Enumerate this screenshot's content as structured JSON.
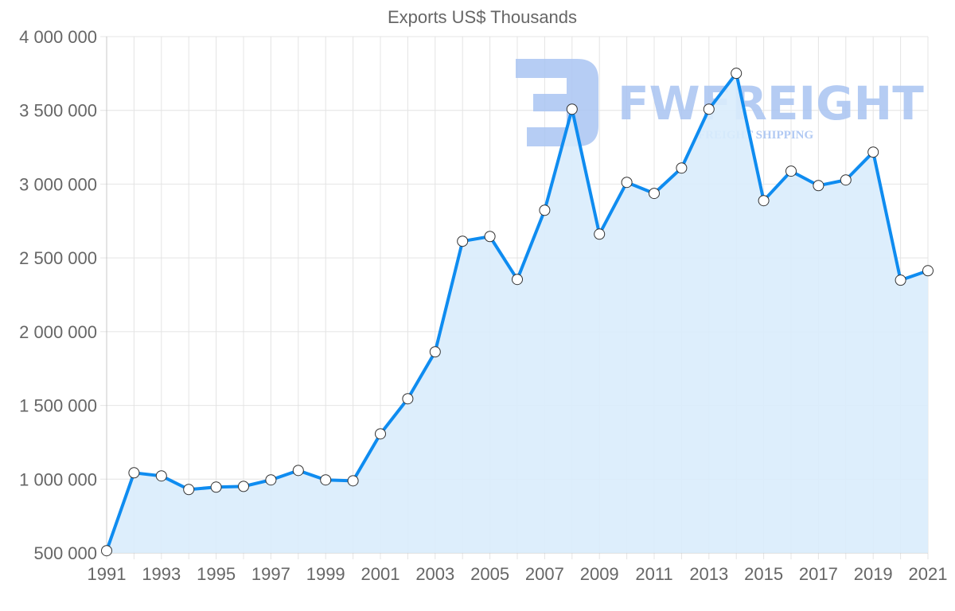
{
  "chart_data": {
    "type": "line",
    "title": "Exports US$ Thousands",
    "xlabel": "",
    "ylabel": "",
    "ylim": [
      500000,
      4000000
    ],
    "y_ticks": [
      500000,
      1000000,
      1500000,
      2000000,
      2500000,
      3000000,
      3500000,
      4000000
    ],
    "y_tick_labels": [
      "500 000",
      "1 000 000",
      "1 500 000",
      "2 000 000",
      "2 500 000",
      "3 000 000",
      "3 500 000",
      "4 000 000"
    ],
    "x_tick_labels": [
      "1991",
      "1993",
      "1995",
      "1997",
      "1999",
      "2001",
      "2003",
      "2005",
      "2007",
      "2009",
      "2011",
      "2013",
      "2015",
      "2017",
      "2019",
      "2021"
    ],
    "grid": true,
    "legend": "none",
    "fill": true,
    "categories": [
      "1991",
      "1992",
      "1993",
      "1994",
      "1995",
      "1996",
      "1997",
      "1998",
      "1999",
      "2000",
      "2001",
      "2002",
      "2003",
      "2004",
      "2005",
      "2006",
      "2007",
      "2008",
      "2009",
      "2010",
      "2011",
      "2012",
      "2013",
      "2014",
      "2015",
      "2016",
      "2017",
      "2018",
      "2019",
      "2020",
      "2021"
    ],
    "series": [
      {
        "name": "Exports US$ Thousands",
        "values": [
          515000,
          1043000,
          1022000,
          930000,
          946000,
          951000,
          995000,
          1059000,
          995000,
          989000,
          1307000,
          1545000,
          1863000,
          2613000,
          2645000,
          2354000,
          2823000,
          3508000,
          2661000,
          3012000,
          2937000,
          3109000,
          3508000,
          3751000,
          2888000,
          3088000,
          2990000,
          3028000,
          3217000,
          2349000,
          2413000
        ]
      }
    ]
  },
  "watermark": {
    "brand": "FWFREIGHT",
    "tagline": "FREIGHT SHIPPING"
  },
  "colors": {
    "line": "#0f8cf0",
    "fill": "#d9ecfc",
    "grid": "#e4e4e4",
    "text": "#666666",
    "point_fill": "#ffffff",
    "point_stroke": "#333333",
    "watermark": "#a9c4f2"
  }
}
